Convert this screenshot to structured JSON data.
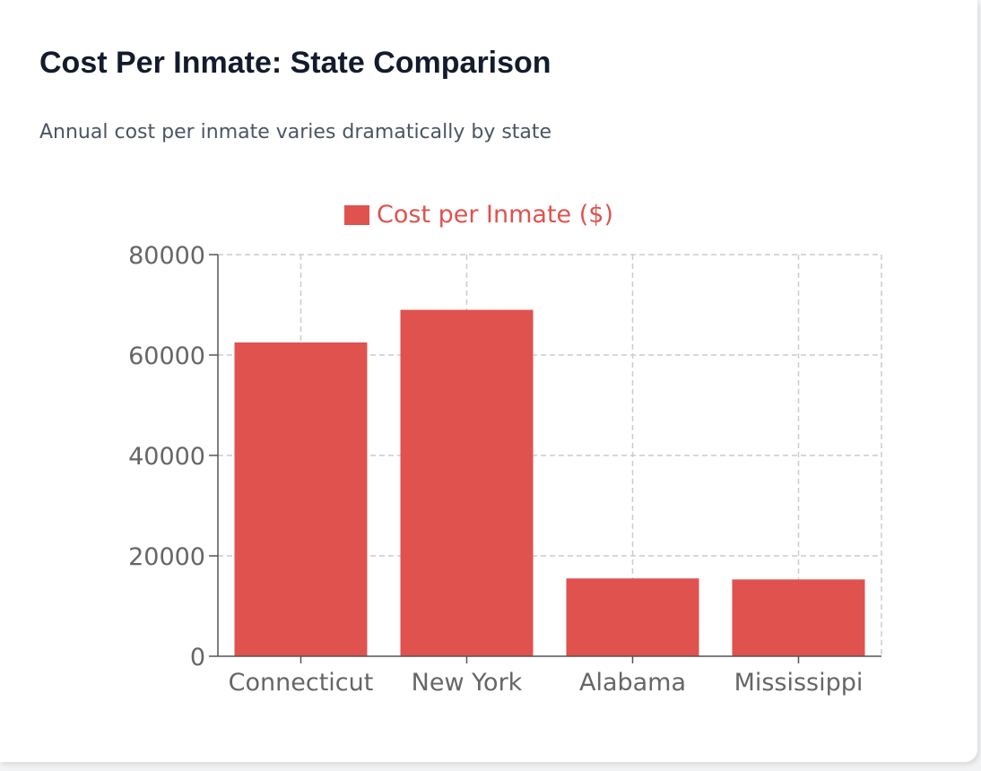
{
  "card": {
    "title": "Cost Per Inmate: State Comparison",
    "subtitle": "Annual cost per inmate varies dramatically by state"
  },
  "colors": {
    "bar": "#e0524e",
    "legend_text": "#e0524e",
    "axis": "#555555",
    "tick_text": "#666666",
    "grid": "#cccccc"
  },
  "chart_data": {
    "type": "bar",
    "categories": [
      "Connecticut",
      "New York",
      "Alabama",
      "Mississippi"
    ],
    "series": [
      {
        "name": "Cost per Inmate ($)",
        "values": [
          62500,
          69000,
          15500,
          15300
        ]
      }
    ],
    "ylim": [
      0,
      80000
    ],
    "yticks": [
      "0",
      "20000",
      "40000",
      "60000",
      "80000"
    ],
    "grid": true,
    "legend_position": "top-center"
  }
}
